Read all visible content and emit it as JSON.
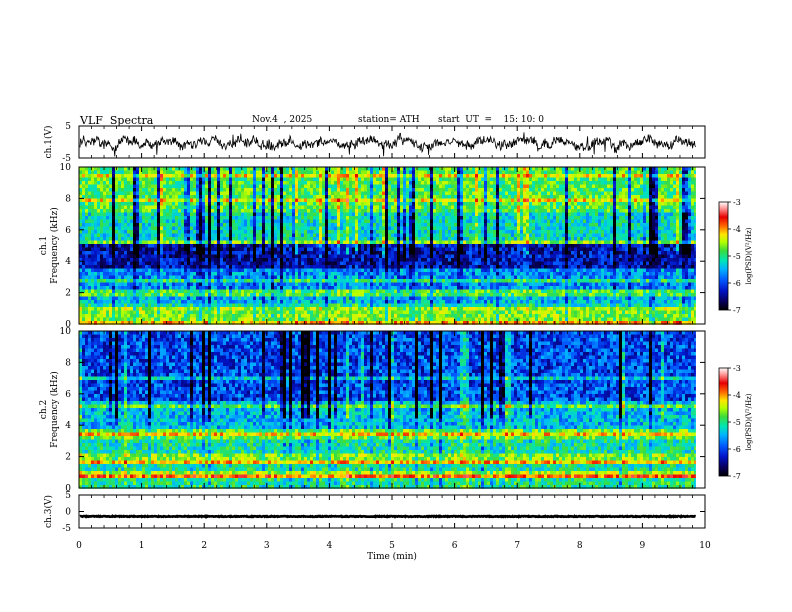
{
  "header": {
    "title": "VLF  Spectra",
    "date": "Nov.4  , 2025",
    "station": "station= ATH",
    "start": "start  UT  =    15: 10: 0"
  },
  "colors": {
    "frame": "#000000",
    "palette": [
      "#000000",
      "#08005a",
      "#0014c8",
      "#005aff",
      "#00b4ff",
      "#00e6b4",
      "#3cdc3c",
      "#b4ff00",
      "#ffe600",
      "#ff6400",
      "#e60000",
      "#ff9696",
      "#ffffff"
    ]
  },
  "chart_data": [
    {
      "type": "line",
      "name": "ch1-waveform",
      "ylabel": "ch.1(V)",
      "ylim": [
        -5,
        5
      ],
      "yticks": [
        5,
        -5
      ],
      "xlim": [
        0,
        10
      ],
      "x_extent": [
        0,
        9.85
      ],
      "mean": -0.3,
      "amplitude_range": [
        -4.5,
        3.0
      ]
    },
    {
      "type": "heatmap",
      "name": "ch1-spectrogram",
      "ylabel": "ch.1\nFrequency  (kHz)",
      "ylim": [
        0,
        10
      ],
      "yticks": [
        0,
        2,
        4,
        6,
        8,
        10
      ],
      "xlim": [
        0,
        10
      ],
      "x_extent": [
        0,
        9.85
      ],
      "colorbar": {
        "label": "log(PSD)(V²/Hz)",
        "range": [
          -7,
          -3
        ],
        "ticks": [
          "-3",
          "-4",
          "-5",
          "-6",
          "-7"
        ]
      },
      "bands": [
        {
          "f": [
            0,
            0.3
          ],
          "log_psd": -4.2
        },
        {
          "f": [
            0.3,
            0.8
          ],
          "log_psd": -4.8
        },
        {
          "f": [
            0.8,
            1.2
          ],
          "log_psd": -5.3
        },
        {
          "f": [
            1.2,
            1.8
          ],
          "log_psd": -5.6
        },
        {
          "f": [
            1.8,
            2.3
          ],
          "log_psd": -5.0
        },
        {
          "f": [
            2.3,
            3.4
          ],
          "log_psd": -5.8
        },
        {
          "f": [
            3.4,
            5.0
          ],
          "log_psd": -6.4
        },
        {
          "f": [
            5.0,
            7.0
          ],
          "log_psd": -5.4
        },
        {
          "f": [
            7.0,
            10.0
          ],
          "log_psd": -5.0
        }
      ]
    },
    {
      "type": "heatmap",
      "name": "ch2-spectrogram",
      "ylabel": "ch.2\nFrequency  (kHz)",
      "ylim": [
        0,
        10
      ],
      "yticks": [
        0,
        2,
        4,
        6,
        8,
        10
      ],
      "xlim": [
        0,
        10
      ],
      "x_extent": [
        0,
        9.85
      ],
      "colorbar": {
        "label": "log(PSD)(V²/Hz)",
        "range": [
          -7,
          -3
        ],
        "ticks": [
          "-3",
          "-4",
          "-5",
          "-6",
          "-7"
        ]
      },
      "bands": [
        {
          "f": [
            0,
            0.6
          ],
          "log_psd": -5.2
        },
        {
          "f": [
            0.6,
            0.9
          ],
          "log_psd": -3.9
        },
        {
          "f": [
            0.9,
            1.6
          ],
          "log_psd": -5.3
        },
        {
          "f": [
            1.6,
            2.3
          ],
          "log_psd": -4.8
        },
        {
          "f": [
            2.3,
            3.2
          ],
          "log_psd": -5.3
        },
        {
          "f": [
            3.2,
            3.8
          ],
          "log_psd": -4.9
        },
        {
          "f": [
            3.8,
            5.5
          ],
          "log_psd": -5.6
        },
        {
          "f": [
            5.5,
            10.0
          ],
          "log_psd": -6.1
        }
      ]
    },
    {
      "type": "line",
      "name": "ch3-waveform",
      "ylabel": "ch.3(V)",
      "xlabel": "Time  (min)",
      "ylim": [
        -5,
        5
      ],
      "yticks": [
        5,
        0,
        -5
      ],
      "xlim": [
        0,
        10
      ],
      "xticks": [
        0,
        1,
        2,
        3,
        4,
        5,
        6,
        7,
        8,
        9,
        10
      ],
      "x_extent": [
        0,
        9.85
      ],
      "mean": -1.5
    }
  ]
}
